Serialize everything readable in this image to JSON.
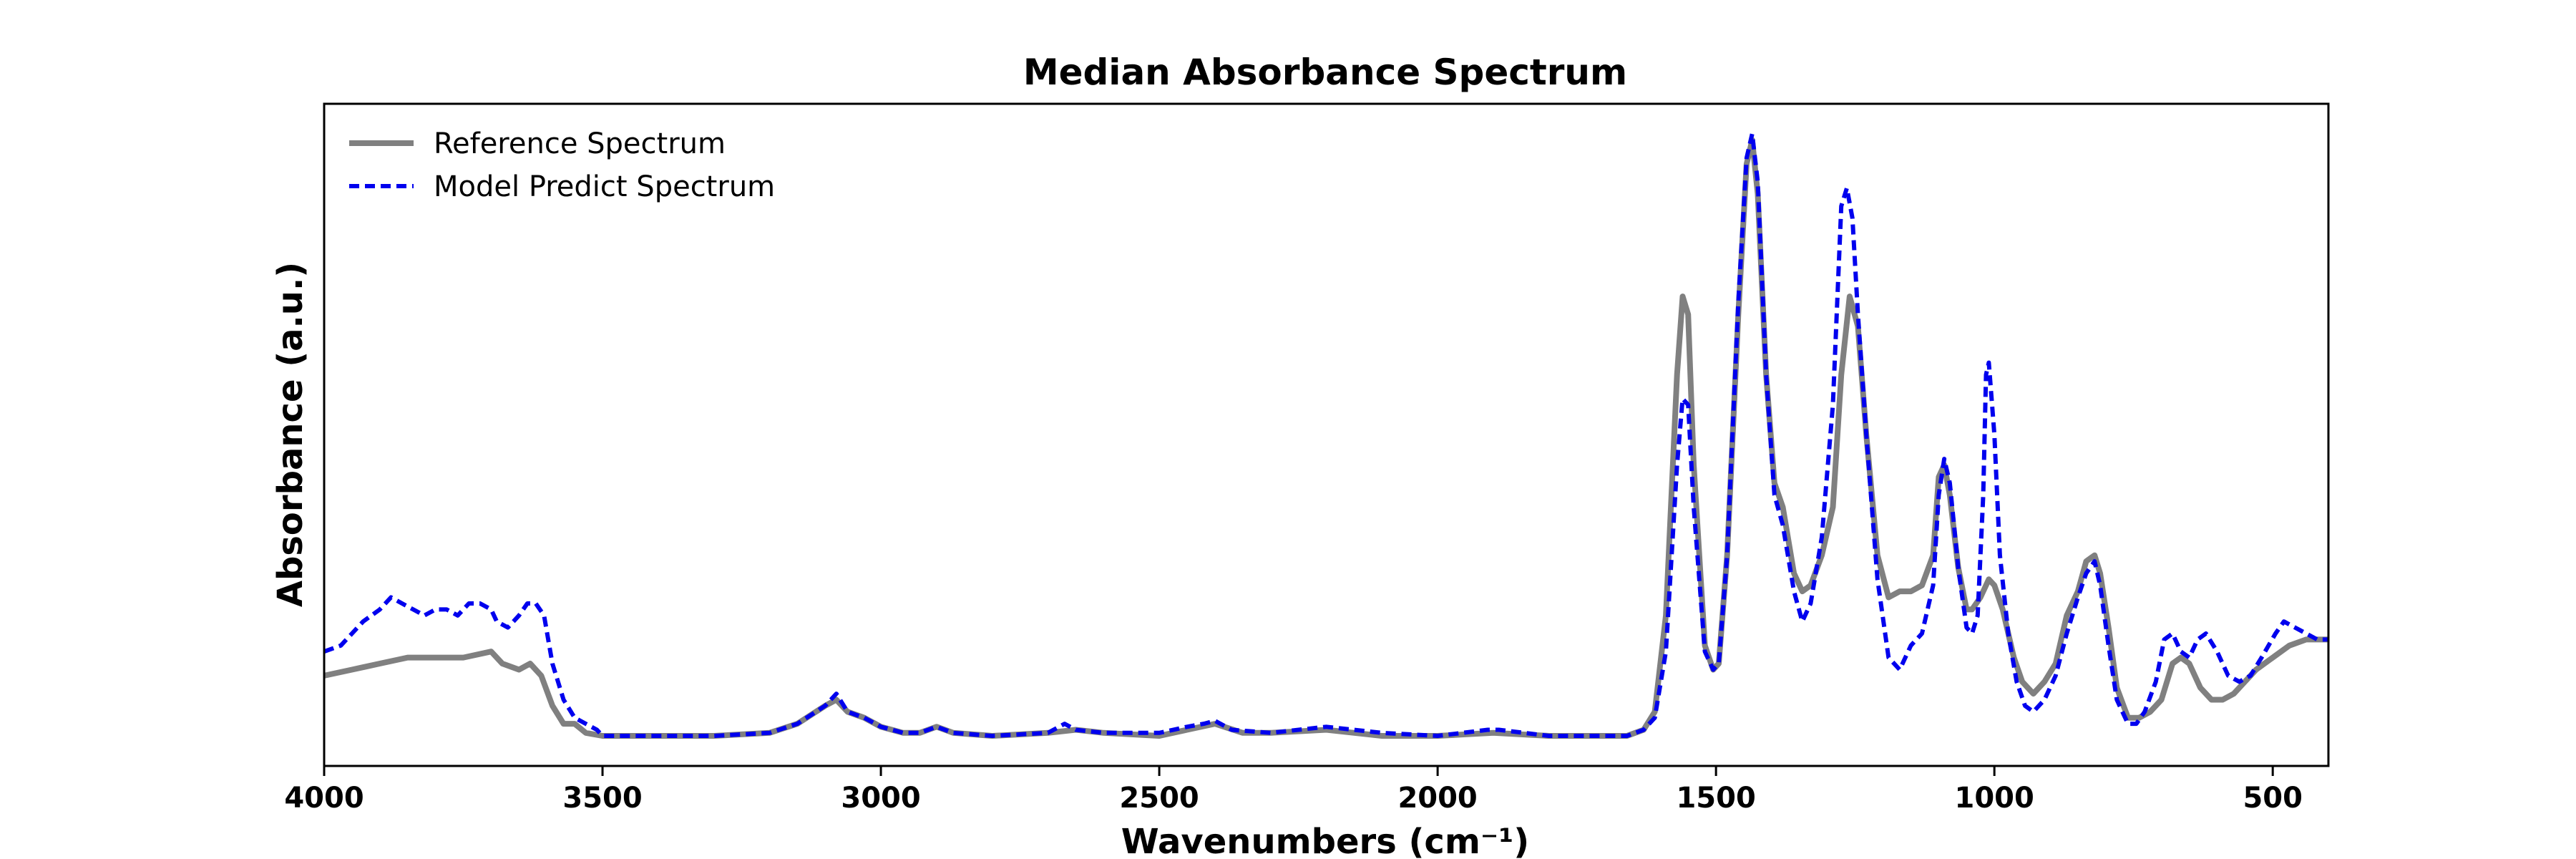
{
  "chart_data": {
    "type": "line",
    "title": "Median Absorbance Spectrum",
    "xlabel": "Wavenumbers (cm⁻¹)",
    "ylabel": "Absorbance (a.u.)",
    "xlim": [
      4000,
      400
    ],
    "x_reversed": true,
    "ylim": [
      -0.05,
      1.05
    ],
    "y_ticks_shown": false,
    "x_ticks": [
      4000,
      3500,
      3000,
      2500,
      2000,
      1500,
      1000,
      500
    ],
    "x_tick_labels": [
      "4000",
      "3500",
      "3000",
      "2500",
      "2000",
      "1500",
      "1000",
      "500"
    ],
    "legend_position": "top-left",
    "series": [
      {
        "name": "Reference Spectrum",
        "color": "#808080",
        "style": "solid",
        "points": [
          [
            4000,
            0.1
          ],
          [
            3950,
            0.11
          ],
          [
            3900,
            0.12
          ],
          [
            3850,
            0.13
          ],
          [
            3800,
            0.13
          ],
          [
            3750,
            0.13
          ],
          [
            3700,
            0.14
          ],
          [
            3680,
            0.12
          ],
          [
            3650,
            0.11
          ],
          [
            3630,
            0.12
          ],
          [
            3610,
            0.1
          ],
          [
            3590,
            0.05
          ],
          [
            3570,
            0.02
          ],
          [
            3550,
            0.02
          ],
          [
            3530,
            0.005
          ],
          [
            3500,
            0.0
          ],
          [
            3450,
            0.0
          ],
          [
            3400,
            0.0
          ],
          [
            3300,
            0.0
          ],
          [
            3200,
            0.005
          ],
          [
            3150,
            0.02
          ],
          [
            3100,
            0.05
          ],
          [
            3080,
            0.06
          ],
          [
            3060,
            0.04
          ],
          [
            3030,
            0.03
          ],
          [
            3000,
            0.015
          ],
          [
            2960,
            0.005
          ],
          [
            2930,
            0.005
          ],
          [
            2900,
            0.015
          ],
          [
            2870,
            0.005
          ],
          [
            2800,
            0.0
          ],
          [
            2700,
            0.005
          ],
          [
            2650,
            0.01
          ],
          [
            2600,
            0.005
          ],
          [
            2500,
            0.0
          ],
          [
            2450,
            0.01
          ],
          [
            2400,
            0.02
          ],
          [
            2350,
            0.005
          ],
          [
            2300,
            0.005
          ],
          [
            2200,
            0.01
          ],
          [
            2100,
            0.0
          ],
          [
            2000,
            0.0
          ],
          [
            1900,
            0.005
          ],
          [
            1800,
            0.0
          ],
          [
            1700,
            0.0
          ],
          [
            1660,
            0.0
          ],
          [
            1630,
            0.01
          ],
          [
            1610,
            0.04
          ],
          [
            1590,
            0.2
          ],
          [
            1570,
            0.6
          ],
          [
            1560,
            0.73
          ],
          [
            1550,
            0.7
          ],
          [
            1540,
            0.45
          ],
          [
            1520,
            0.15
          ],
          [
            1505,
            0.11
          ],
          [
            1495,
            0.12
          ],
          [
            1480,
            0.3
          ],
          [
            1460,
            0.7
          ],
          [
            1445,
            0.95
          ],
          [
            1435,
            0.99
          ],
          [
            1425,
            0.9
          ],
          [
            1410,
            0.6
          ],
          [
            1395,
            0.42
          ],
          [
            1380,
            0.38
          ],
          [
            1360,
            0.27
          ],
          [
            1345,
            0.24
          ],
          [
            1330,
            0.25
          ],
          [
            1310,
            0.3
          ],
          [
            1290,
            0.38
          ],
          [
            1275,
            0.6
          ],
          [
            1260,
            0.73
          ],
          [
            1245,
            0.68
          ],
          [
            1230,
            0.5
          ],
          [
            1210,
            0.3
          ],
          [
            1190,
            0.23
          ],
          [
            1170,
            0.24
          ],
          [
            1150,
            0.24
          ],
          [
            1130,
            0.25
          ],
          [
            1110,
            0.3
          ],
          [
            1100,
            0.43
          ],
          [
            1090,
            0.45
          ],
          [
            1080,
            0.4
          ],
          [
            1065,
            0.28
          ],
          [
            1050,
            0.21
          ],
          [
            1040,
            0.21
          ],
          [
            1025,
            0.23
          ],
          [
            1010,
            0.26
          ],
          [
            1000,
            0.25
          ],
          [
            985,
            0.21
          ],
          [
            965,
            0.13
          ],
          [
            950,
            0.09
          ],
          [
            930,
            0.07
          ],
          [
            910,
            0.09
          ],
          [
            890,
            0.12
          ],
          [
            870,
            0.2
          ],
          [
            850,
            0.24
          ],
          [
            835,
            0.29
          ],
          [
            820,
            0.3
          ],
          [
            810,
            0.27
          ],
          [
            795,
            0.18
          ],
          [
            780,
            0.08
          ],
          [
            760,
            0.03
          ],
          [
            740,
            0.03
          ],
          [
            720,
            0.04
          ],
          [
            700,
            0.06
          ],
          [
            680,
            0.12
          ],
          [
            665,
            0.13
          ],
          [
            650,
            0.12
          ],
          [
            630,
            0.08
          ],
          [
            610,
            0.06
          ],
          [
            590,
            0.06
          ],
          [
            570,
            0.07
          ],
          [
            550,
            0.09
          ],
          [
            530,
            0.11
          ],
          [
            500,
            0.13
          ],
          [
            470,
            0.15
          ],
          [
            440,
            0.16
          ],
          [
            400,
            0.16
          ]
        ]
      },
      {
        "name": "Model Predict Spectrum",
        "color": "#0000ee",
        "style": "dashed",
        "points": [
          [
            4000,
            0.14
          ],
          [
            3970,
            0.15
          ],
          [
            3950,
            0.17
          ],
          [
            3930,
            0.19
          ],
          [
            3900,
            0.21
          ],
          [
            3880,
            0.23
          ],
          [
            3860,
            0.22
          ],
          [
            3840,
            0.21
          ],
          [
            3820,
            0.2
          ],
          [
            3800,
            0.21
          ],
          [
            3780,
            0.21
          ],
          [
            3760,
            0.2
          ],
          [
            3740,
            0.22
          ],
          [
            3720,
            0.22
          ],
          [
            3700,
            0.21
          ],
          [
            3690,
            0.19
          ],
          [
            3670,
            0.18
          ],
          [
            3650,
            0.2
          ],
          [
            3635,
            0.22
          ],
          [
            3620,
            0.22
          ],
          [
            3605,
            0.2
          ],
          [
            3590,
            0.12
          ],
          [
            3570,
            0.06
          ],
          [
            3550,
            0.03
          ],
          [
            3530,
            0.02
          ],
          [
            3510,
            0.01
          ],
          [
            3500,
            0.0
          ],
          [
            3450,
            0.0
          ],
          [
            3400,
            0.0
          ],
          [
            3300,
            0.0
          ],
          [
            3200,
            0.005
          ],
          [
            3150,
            0.02
          ],
          [
            3100,
            0.05
          ],
          [
            3080,
            0.07
          ],
          [
            3060,
            0.04
          ],
          [
            3030,
            0.03
          ],
          [
            3000,
            0.015
          ],
          [
            2960,
            0.005
          ],
          [
            2930,
            0.005
          ],
          [
            2900,
            0.015
          ],
          [
            2870,
            0.005
          ],
          [
            2800,
            0.0
          ],
          [
            2700,
            0.005
          ],
          [
            2670,
            0.02
          ],
          [
            2650,
            0.01
          ],
          [
            2600,
            0.005
          ],
          [
            2500,
            0.005
          ],
          [
            2450,
            0.015
          ],
          [
            2420,
            0.02
          ],
          [
            2400,
            0.025
          ],
          [
            2370,
            0.01
          ],
          [
            2300,
            0.005
          ],
          [
            2200,
            0.015
          ],
          [
            2100,
            0.005
          ],
          [
            2000,
            0.0
          ],
          [
            1910,
            0.01
          ],
          [
            1890,
            0.01
          ],
          [
            1800,
            0.0
          ],
          [
            1700,
            0.0
          ],
          [
            1660,
            0.0
          ],
          [
            1630,
            0.01
          ],
          [
            1610,
            0.03
          ],
          [
            1590,
            0.14
          ],
          [
            1570,
            0.45
          ],
          [
            1560,
            0.56
          ],
          [
            1550,
            0.55
          ],
          [
            1540,
            0.38
          ],
          [
            1520,
            0.14
          ],
          [
            1505,
            0.11
          ],
          [
            1495,
            0.12
          ],
          [
            1480,
            0.3
          ],
          [
            1460,
            0.72
          ],
          [
            1445,
            0.96
          ],
          [
            1435,
            1.0
          ],
          [
            1425,
            0.92
          ],
          [
            1410,
            0.6
          ],
          [
            1395,
            0.4
          ],
          [
            1380,
            0.35
          ],
          [
            1360,
            0.24
          ],
          [
            1345,
            0.19
          ],
          [
            1330,
            0.22
          ],
          [
            1310,
            0.33
          ],
          [
            1290,
            0.55
          ],
          [
            1275,
            0.88
          ],
          [
            1265,
            0.91
          ],
          [
            1255,
            0.86
          ],
          [
            1245,
            0.7
          ],
          [
            1230,
            0.5
          ],
          [
            1210,
            0.26
          ],
          [
            1190,
            0.13
          ],
          [
            1170,
            0.11
          ],
          [
            1150,
            0.15
          ],
          [
            1130,
            0.17
          ],
          [
            1110,
            0.25
          ],
          [
            1100,
            0.4
          ],
          [
            1090,
            0.46
          ],
          [
            1080,
            0.42
          ],
          [
            1065,
            0.28
          ],
          [
            1050,
            0.18
          ],
          [
            1040,
            0.17
          ],
          [
            1030,
            0.2
          ],
          [
            1020,
            0.4
          ],
          [
            1015,
            0.6
          ],
          [
            1010,
            0.62
          ],
          [
            1000,
            0.5
          ],
          [
            990,
            0.3
          ],
          [
            975,
            0.17
          ],
          [
            960,
            0.09
          ],
          [
            945,
            0.05
          ],
          [
            930,
            0.04
          ],
          [
            910,
            0.06
          ],
          [
            890,
            0.1
          ],
          [
            870,
            0.17
          ],
          [
            850,
            0.23
          ],
          [
            835,
            0.27
          ],
          [
            820,
            0.29
          ],
          [
            810,
            0.25
          ],
          [
            795,
            0.15
          ],
          [
            780,
            0.06
          ],
          [
            760,
            0.02
          ],
          [
            745,
            0.02
          ],
          [
            730,
            0.04
          ],
          [
            710,
            0.09
          ],
          [
            695,
            0.16
          ],
          [
            680,
            0.17
          ],
          [
            665,
            0.14
          ],
          [
            650,
            0.13
          ],
          [
            635,
            0.16
          ],
          [
            620,
            0.17
          ],
          [
            600,
            0.14
          ],
          [
            580,
            0.1
          ],
          [
            560,
            0.09
          ],
          [
            540,
            0.1
          ],
          [
            520,
            0.13
          ],
          [
            495,
            0.17
          ],
          [
            480,
            0.19
          ],
          [
            460,
            0.18
          ],
          [
            440,
            0.17
          ],
          [
            420,
            0.16
          ],
          [
            400,
            0.16
          ]
        ]
      }
    ]
  }
}
